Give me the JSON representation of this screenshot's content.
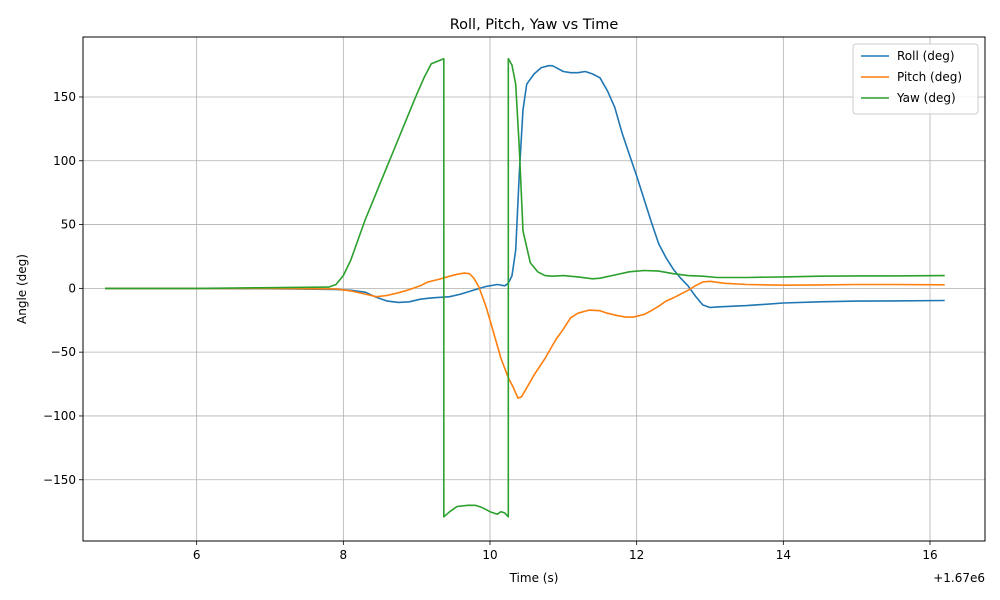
{
  "chart_data": {
    "type": "line",
    "title": "Roll, Pitch, Yaw vs Time",
    "xlabel": "Time (s)",
    "ylabel": "Angle (deg)",
    "x_offset_label": "+1.67e6",
    "xlim": [
      4.45,
      16.75
    ],
    "ylim": [
      -198,
      197
    ],
    "xticks": [
      6,
      8,
      10,
      12,
      14,
      16
    ],
    "yticks": [
      -150,
      -100,
      -50,
      0,
      50,
      100,
      150
    ],
    "ytick_labels": [
      "−150",
      "−100",
      "−50",
      "0",
      "50",
      "100",
      "150"
    ],
    "grid": true,
    "legend_position": "top-right",
    "series": [
      {
        "name": "Roll (deg)",
        "color": "#1f77b4",
        "points": [
          [
            4.75,
            0
          ],
          [
            6.0,
            0
          ],
          [
            7.0,
            -0.3
          ],
          [
            7.9,
            -0.8
          ],
          [
            8.1,
            -1.5
          ],
          [
            8.3,
            -3
          ],
          [
            8.45,
            -7
          ],
          [
            8.6,
            -10
          ],
          [
            8.75,
            -11
          ],
          [
            8.9,
            -10.5
          ],
          [
            9.05,
            -8.5
          ],
          [
            9.2,
            -7.5
          ],
          [
            9.45,
            -6.5
          ],
          [
            9.6,
            -4.5
          ],
          [
            9.8,
            -1
          ],
          [
            9.95,
            1.5
          ],
          [
            10.1,
            3
          ],
          [
            10.2,
            2
          ],
          [
            10.25,
            4
          ],
          [
            10.3,
            10
          ],
          [
            10.35,
            30
          ],
          [
            10.4,
            90
          ],
          [
            10.45,
            140
          ],
          [
            10.5,
            160
          ],
          [
            10.6,
            168
          ],
          [
            10.7,
            173
          ],
          [
            10.8,
            174.5
          ],
          [
            10.85,
            174.5
          ],
          [
            10.9,
            173
          ],
          [
            11.0,
            170
          ],
          [
            11.1,
            169
          ],
          [
            11.2,
            169
          ],
          [
            11.3,
            170
          ],
          [
            11.4,
            168
          ],
          [
            11.5,
            165
          ],
          [
            11.6,
            155
          ],
          [
            11.7,
            142
          ],
          [
            11.8,
            122
          ],
          [
            11.9,
            105
          ],
          [
            12.0,
            88
          ],
          [
            12.1,
            70
          ],
          [
            12.2,
            52
          ],
          [
            12.3,
            35
          ],
          [
            12.4,
            24
          ],
          [
            12.5,
            15
          ],
          [
            12.6,
            8
          ],
          [
            12.7,
            2
          ],
          [
            12.8,
            -6
          ],
          [
            12.9,
            -13
          ],
          [
            13.0,
            -15
          ],
          [
            13.1,
            -14.5
          ],
          [
            13.5,
            -13.5
          ],
          [
            14.0,
            -11.5
          ],
          [
            14.5,
            -10.5
          ],
          [
            15.0,
            -10
          ],
          [
            15.5,
            -9.8
          ],
          [
            16.2,
            -9.5
          ]
        ]
      },
      {
        "name": "Pitch (deg)",
        "color": "#ff7f0e",
        "points": [
          [
            4.75,
            0
          ],
          [
            6.0,
            0
          ],
          [
            7.0,
            0
          ],
          [
            7.9,
            -0.5
          ],
          [
            8.1,
            -2
          ],
          [
            8.3,
            -4.5
          ],
          [
            8.45,
            -6.5
          ],
          [
            8.6,
            -5.5
          ],
          [
            8.75,
            -3.5
          ],
          [
            8.9,
            -1
          ],
          [
            9.05,
            2
          ],
          [
            9.15,
            5
          ],
          [
            9.3,
            7
          ],
          [
            9.45,
            9.5
          ],
          [
            9.55,
            11
          ],
          [
            9.65,
            12
          ],
          [
            9.72,
            11.5
          ],
          [
            9.78,
            8
          ],
          [
            9.85,
            1
          ],
          [
            9.95,
            -15
          ],
          [
            10.05,
            -35
          ],
          [
            10.15,
            -55
          ],
          [
            10.25,
            -70
          ],
          [
            10.32,
            -78
          ],
          [
            10.38,
            -86
          ],
          [
            10.43,
            -85
          ],
          [
            10.5,
            -78
          ],
          [
            10.6,
            -68
          ],
          [
            10.75,
            -55
          ],
          [
            10.9,
            -40
          ],
          [
            11.0,
            -32
          ],
          [
            11.1,
            -23
          ],
          [
            11.2,
            -19.5
          ],
          [
            11.35,
            -17
          ],
          [
            11.5,
            -17.5
          ],
          [
            11.6,
            -19.5
          ],
          [
            11.75,
            -21.5
          ],
          [
            11.85,
            -22.5
          ],
          [
            11.95,
            -22.5
          ],
          [
            12.1,
            -20.5
          ],
          [
            12.2,
            -17.5
          ],
          [
            12.3,
            -14
          ],
          [
            12.4,
            -10
          ],
          [
            12.5,
            -7.5
          ],
          [
            12.6,
            -4.5
          ],
          [
            12.7,
            -1.5
          ],
          [
            12.8,
            2
          ],
          [
            12.9,
            5
          ],
          [
            13.0,
            5.5
          ],
          [
            13.2,
            4
          ],
          [
            13.5,
            3
          ],
          [
            14.0,
            2.5
          ],
          [
            14.5,
            2.7
          ],
          [
            15.0,
            3
          ],
          [
            15.5,
            3
          ],
          [
            16.2,
            2.8
          ]
        ]
      },
      {
        "name": "Yaw (deg)",
        "color": "#2ca02c",
        "points": [
          [
            4.75,
            0
          ],
          [
            6.0,
            0
          ],
          [
            7.0,
            0.5
          ],
          [
            7.8,
            1
          ],
          [
            7.9,
            3
          ],
          [
            8.0,
            10
          ],
          [
            8.1,
            22
          ],
          [
            8.2,
            38
          ],
          [
            8.3,
            54
          ],
          [
            8.4,
            68
          ],
          [
            8.5,
            82
          ],
          [
            8.6,
            96
          ],
          [
            8.7,
            110
          ],
          [
            8.8,
            124
          ],
          [
            8.9,
            138
          ],
          [
            9.0,
            152
          ],
          [
            9.1,
            165
          ],
          [
            9.2,
            176
          ],
          [
            9.37,
            180
          ],
          [
            9.37,
            -179
          ],
          [
            9.45,
            -175
          ],
          [
            9.55,
            -171
          ],
          [
            9.7,
            -170
          ],
          [
            9.8,
            -170
          ],
          [
            9.9,
            -172
          ],
          [
            10.0,
            -175
          ],
          [
            10.1,
            -177
          ],
          [
            10.15,
            -175
          ],
          [
            10.2,
            -176
          ],
          [
            10.25,
            -179
          ],
          [
            10.25,
            180
          ],
          [
            10.3,
            175
          ],
          [
            10.35,
            160
          ],
          [
            10.4,
            110
          ],
          [
            10.45,
            45
          ],
          [
            10.55,
            20
          ],
          [
            10.65,
            13
          ],
          [
            10.75,
            10
          ],
          [
            10.85,
            9.5
          ],
          [
            11.0,
            10
          ],
          [
            11.2,
            9
          ],
          [
            11.4,
            7.5
          ],
          [
            11.5,
            8
          ],
          [
            11.7,
            10.5
          ],
          [
            11.9,
            13
          ],
          [
            12.1,
            14
          ],
          [
            12.3,
            13.5
          ],
          [
            12.5,
            11.5
          ],
          [
            12.7,
            10
          ],
          [
            12.9,
            9.5
          ],
          [
            13.1,
            8.5
          ],
          [
            13.5,
            8.5
          ],
          [
            14.0,
            9
          ],
          [
            14.5,
            9.5
          ],
          [
            15.0,
            9.8
          ],
          [
            15.5,
            9.8
          ],
          [
            16.2,
            10
          ]
        ]
      }
    ]
  }
}
